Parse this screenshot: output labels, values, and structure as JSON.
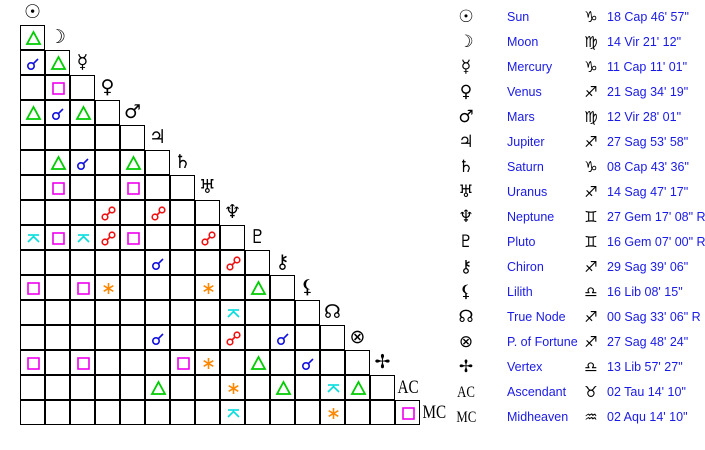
{
  "colors": {
    "trine": "#00cc00",
    "square": "#ee00ee",
    "conjunction": "#1010dd",
    "opposition": "#ee1111",
    "sextile": "#ff8800",
    "quincunx": "#00dddd",
    "text": "#1a1ae6"
  },
  "planets": [
    {
      "name": "Sun",
      "icon": "sun-icon",
      "sign_icon": "capricorn-icon",
      "position": "18 Cap 46' 57\""
    },
    {
      "name": "Moon",
      "icon": "moon-icon",
      "sign_icon": "virgo-icon",
      "position": "14 Vir 21' 12\""
    },
    {
      "name": "Mercury",
      "icon": "mercury-icon",
      "sign_icon": "capricorn-icon",
      "position": "11 Cap 11' 01\""
    },
    {
      "name": "Venus",
      "icon": "venus-icon",
      "sign_icon": "sagittarius-icon",
      "position": "21 Sag 34' 19\""
    },
    {
      "name": "Mars",
      "icon": "mars-icon",
      "sign_icon": "virgo-icon",
      "position": "12 Vir 28' 01\""
    },
    {
      "name": "Jupiter",
      "icon": "jupiter-icon",
      "sign_icon": "sagittarius-icon",
      "position": "27 Sag 53' 58\""
    },
    {
      "name": "Saturn",
      "icon": "saturn-icon",
      "sign_icon": "capricorn-icon",
      "position": "08 Cap 43' 36\""
    },
    {
      "name": "Uranus",
      "icon": "uranus-icon",
      "sign_icon": "sagittarius-icon",
      "position": "14 Sag 47' 17\""
    },
    {
      "name": "Neptune",
      "icon": "neptune-icon",
      "sign_icon": "gemini-icon",
      "position": "27 Gem 17' 08\" R"
    },
    {
      "name": "Pluto",
      "icon": "pluto-icon",
      "sign_icon": "gemini-icon",
      "position": "16 Gem 07' 00\" R"
    },
    {
      "name": "Chiron",
      "icon": "chiron-icon",
      "sign_icon": "sagittarius-icon",
      "position": "29 Sag 39' 06\""
    },
    {
      "name": "Lilith",
      "icon": "lilith-icon",
      "sign_icon": "libra-icon",
      "position": "16 Lib 08' 15\""
    },
    {
      "name": "True Node",
      "icon": "north-node-icon",
      "sign_icon": "sagittarius-icon",
      "position": "00 Sag 33' 06\" R"
    },
    {
      "name": "P. of Fortune",
      "icon": "part-of-fortune-icon",
      "sign_icon": "sagittarius-icon",
      "position": "27 Sag 48' 24\""
    },
    {
      "name": "Vertex",
      "icon": "vertex-icon",
      "sign_icon": "libra-icon",
      "position": "13 Lib 57' 27\""
    },
    {
      "name": "Ascendant",
      "icon": "ascendant-icon",
      "label": "AC",
      "sign_icon": "taurus-icon",
      "position": "02 Tau 14' 10\""
    },
    {
      "name": "Midheaven",
      "icon": "midheaven-icon",
      "label": "MC",
      "sign_icon": "aquarius-icon",
      "position": "02 Aqu 14' 10\""
    }
  ],
  "aspect_grid": [
    [],
    [
      "trine"
    ],
    [
      "conjunction",
      "trine"
    ],
    [
      "",
      "square",
      ""
    ],
    [
      "trine",
      "conjunction",
      "trine",
      ""
    ],
    [
      "",
      "",
      "",
      "",
      ""
    ],
    [
      "",
      "trine",
      "conjunction",
      "",
      "trine",
      ""
    ],
    [
      "",
      "square",
      "",
      "",
      "square",
      "",
      ""
    ],
    [
      "",
      "",
      "",
      "opposition",
      "",
      "opposition",
      "",
      ""
    ],
    [
      "quincunx",
      "square",
      "quincunx",
      "opposition",
      "square",
      "",
      "",
      "opposition",
      ""
    ],
    [
      "",
      "",
      "",
      "",
      "",
      "conjunction",
      "",
      "",
      "opposition",
      ""
    ],
    [
      "square",
      "",
      "square",
      "sextile",
      "",
      "",
      "",
      "sextile",
      "",
      "trine",
      ""
    ],
    [
      "",
      "",
      "",
      "",
      "",
      "",
      "",
      "",
      "quincunx",
      "",
      "",
      ""
    ],
    [
      "",
      "",
      "",
      "",
      "",
      "conjunction",
      "",
      "",
      "opposition",
      "",
      "conjunction",
      "",
      ""
    ],
    [
      "square",
      "",
      "square",
      "",
      "",
      "",
      "square",
      "sextile",
      "",
      "trine",
      "",
      "conjunction",
      "",
      ""
    ],
    [
      "",
      "",
      "",
      "",
      "",
      "trine",
      "",
      "",
      "sextile",
      "",
      "trine",
      "",
      "quincunx",
      "trine",
      ""
    ],
    [
      "",
      "",
      "",
      "",
      "",
      "",
      "",
      "",
      "quincunx",
      "",
      "",
      "",
      "sextile",
      "",
      "",
      "square"
    ]
  ]
}
